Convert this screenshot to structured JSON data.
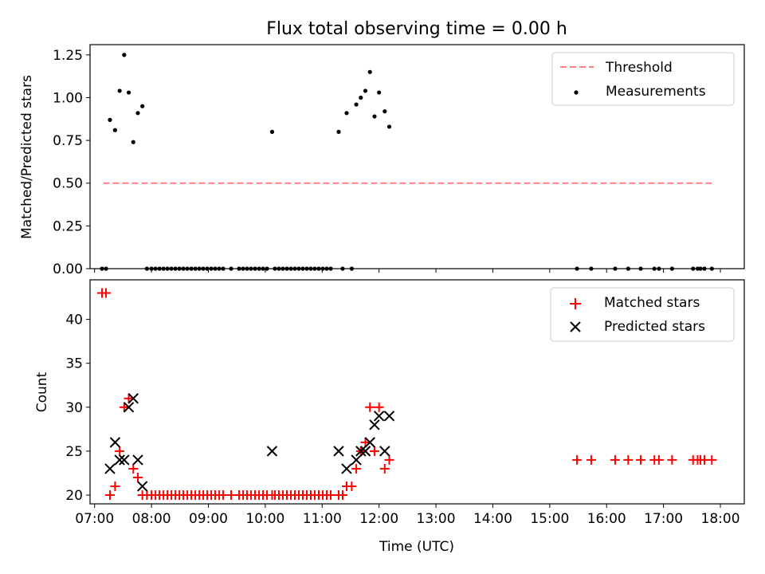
{
  "title": "Flux total observing time = 0.00 h",
  "colors": {
    "threshold": "#ff7f7f",
    "measurement": "#000000",
    "matched": "#ff0000",
    "predicted": "#000000"
  },
  "chart_data": [
    {
      "type": "scatter",
      "ylabel": "Matched/Predicted stars",
      "xlim": [
        6.92,
        18.42
      ],
      "ylim": [
        0.0,
        1.31
      ],
      "yticks": [
        0.0,
        0.25,
        0.5,
        0.75,
        1.0,
        1.25
      ],
      "ytick_labels": [
        "0.00",
        "0.25",
        "0.50",
        "0.75",
        "1.00",
        "1.25"
      ],
      "grid": false,
      "legend": "top-right",
      "legend_labels": [
        "Threshold",
        "Measurements"
      ],
      "threshold": {
        "value": 0.5,
        "x_range": [
          7.15,
          17.85
        ]
      },
      "series": [
        {
          "name": "Measurements",
          "x": [
            7.13,
            7.2,
            7.27,
            7.36,
            7.44,
            7.52,
            7.6,
            7.68,
            7.76,
            7.84,
            7.92,
            8.0,
            8.07,
            8.14,
            8.21,
            8.28,
            8.35,
            8.42,
            8.49,
            8.56,
            8.63,
            8.7,
            8.77,
            8.84,
            8.91,
            8.98,
            9.05,
            9.12,
            9.19,
            9.26,
            9.4,
            9.54,
            9.61,
            9.68,
            9.75,
            9.82,
            9.89,
            9.96,
            10.03,
            10.12,
            10.17,
            10.24,
            10.31,
            10.38,
            10.45,
            10.52,
            10.59,
            10.66,
            10.73,
            10.8,
            10.87,
            10.94,
            11.01,
            11.08,
            11.15,
            11.29,
            11.36,
            11.43,
            11.52,
            11.6,
            11.68,
            11.76,
            11.84,
            11.92,
            12.0,
            12.1,
            12.18,
            15.48,
            15.73,
            16.15,
            16.38,
            16.6,
            16.84,
            16.92,
            17.15,
            17.52,
            17.6,
            17.65,
            17.72,
            17.85
          ],
          "y": [
            0,
            0,
            0.87,
            0.81,
            1.04,
            1.25,
            1.03,
            0.74,
            0.91,
            0.95,
            0,
            0,
            0,
            0,
            0,
            0,
            0,
            0,
            0,
            0,
            0,
            0,
            0,
            0,
            0,
            0,
            0,
            0,
            0,
            0,
            0,
            0,
            0,
            0,
            0,
            0,
            0,
            0,
            0,
            0.8,
            0,
            0,
            0,
            0,
            0,
            0,
            0,
            0,
            0,
            0,
            0,
            0,
            0,
            0,
            0,
            0.8,
            0,
            0.91,
            0,
            0.96,
            1.0,
            1.04,
            1.15,
            0.89,
            1.03,
            0.92,
            0.83,
            0,
            0,
            0,
            0,
            0,
            0,
            0,
            0,
            0,
            0,
            0,
            0,
            0
          ]
        }
      ]
    },
    {
      "type": "scatter",
      "xlabel": "Time (UTC)",
      "ylabel": "Count",
      "xlim": [
        6.92,
        18.42
      ],
      "ylim": [
        19.0,
        44.5
      ],
      "yticks": [
        20,
        25,
        30,
        35,
        40
      ],
      "ytick_labels": [
        "20",
        "25",
        "30",
        "35",
        "40"
      ],
      "xticks": [
        7,
        8,
        9,
        10,
        11,
        12,
        13,
        14,
        15,
        16,
        17,
        18
      ],
      "xtick_labels": [
        "07:00",
        "08:00",
        "09:00",
        "10:00",
        "11:00",
        "12:00",
        "13:00",
        "14:00",
        "15:00",
        "16:00",
        "17:00",
        "18:00"
      ],
      "grid": false,
      "legend": "top-right",
      "legend_labels": [
        "Matched stars",
        "Predicted stars"
      ],
      "series": [
        {
          "name": "Matched stars",
          "x": [
            7.13,
            7.2,
            7.27,
            7.36,
            7.44,
            7.52,
            7.6,
            7.68,
            7.76,
            7.84,
            7.92,
            8.0,
            8.07,
            8.14,
            8.21,
            8.28,
            8.35,
            8.42,
            8.49,
            8.56,
            8.63,
            8.7,
            8.77,
            8.84,
            8.91,
            8.98,
            9.05,
            9.12,
            9.19,
            9.26,
            9.4,
            9.54,
            9.61,
            9.68,
            9.75,
            9.82,
            9.89,
            9.96,
            10.03,
            10.12,
            10.17,
            10.24,
            10.31,
            10.38,
            10.45,
            10.52,
            10.59,
            10.66,
            10.73,
            10.8,
            10.87,
            10.94,
            11.01,
            11.08,
            11.15,
            11.29,
            11.36,
            11.43,
            11.52,
            11.6,
            11.68,
            11.76,
            11.84,
            11.92,
            12.0,
            12.1,
            12.18,
            15.48,
            15.73,
            16.15,
            16.38,
            16.6,
            16.84,
            16.92,
            17.15,
            17.52,
            17.6,
            17.65,
            17.72,
            17.85
          ],
          "y": [
            43,
            43,
            20,
            21,
            25,
            30,
            31,
            23,
            22,
            20,
            20,
            20,
            20,
            20,
            20,
            20,
            20,
            20,
            20,
            20,
            20,
            20,
            20,
            20,
            20,
            20,
            20,
            20,
            20,
            20,
            20,
            20,
            20,
            20,
            20,
            20,
            20,
            20,
            20,
            20,
            20,
            20,
            20,
            20,
            20,
            20,
            20,
            20,
            20,
            20,
            20,
            20,
            20,
            20,
            20,
            20,
            20,
            21,
            21,
            23,
            25,
            26,
            30,
            25,
            30,
            23,
            24,
            24,
            24,
            24,
            24,
            24,
            24,
            24,
            24,
            24,
            24,
            24,
            24,
            24
          ]
        },
        {
          "name": "Predicted stars",
          "x": [
            7.27,
            7.36,
            7.44,
            7.52,
            7.6,
            7.68,
            7.76,
            7.84,
            10.12,
            11.29,
            11.43,
            11.6,
            11.68,
            11.76,
            11.84,
            11.92,
            12.0,
            12.1,
            12.18
          ],
          "y": [
            23,
            26,
            24,
            24,
            30,
            31,
            24,
            21,
            25,
            25,
            23,
            24,
            25,
            25,
            26,
            28,
            29,
            25,
            29
          ]
        }
      ]
    }
  ]
}
